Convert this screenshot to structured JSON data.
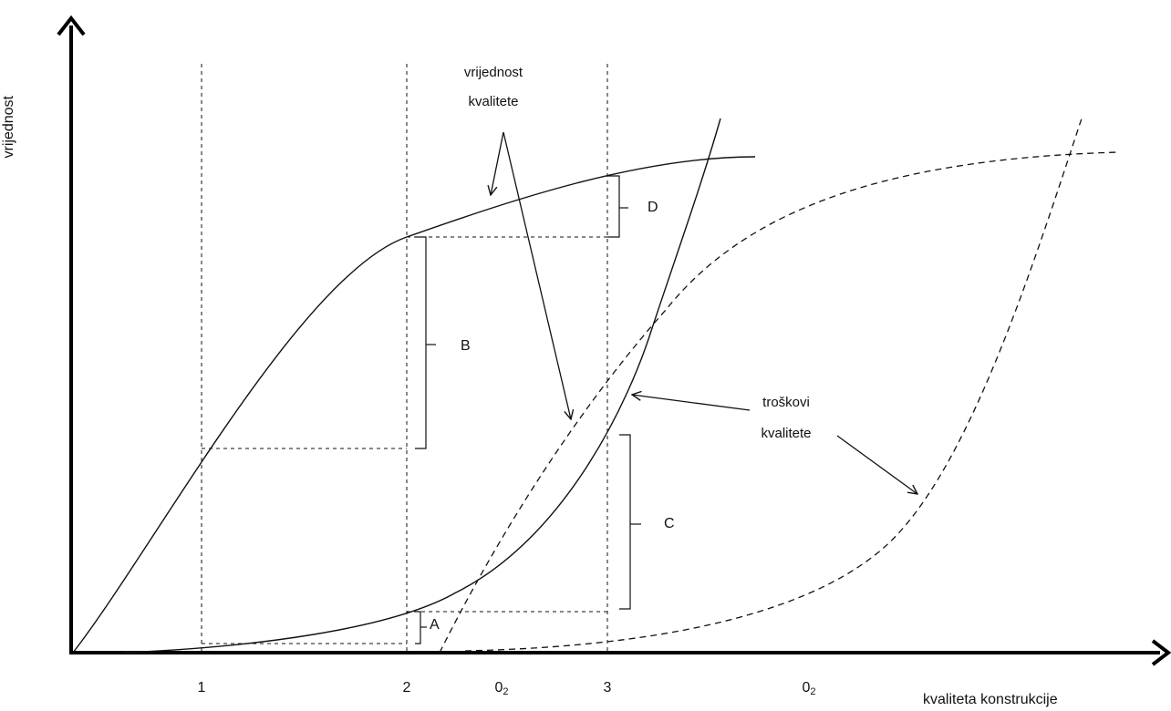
{
  "y_axis_label": "vrijednost",
  "x_axis_label": "kvaliteta konstrukcije",
  "x_ticks": [
    "1",
    "2",
    "0",
    "3",
    "0"
  ],
  "x_tick_subscripts": [
    "",
    "",
    "2",
    "",
    "2"
  ],
  "annotations": {
    "value_label_line1": "vrijednost",
    "value_label_line2": "kvalitete",
    "cost_label_line1": "troškovi",
    "cost_label_line2": "kvalitete",
    "bracket_a": "A",
    "bracket_b": "B",
    "bracket_c": "C",
    "bracket_d": "D"
  },
  "colors": {
    "line": "#111111",
    "background": "#ffffff"
  }
}
